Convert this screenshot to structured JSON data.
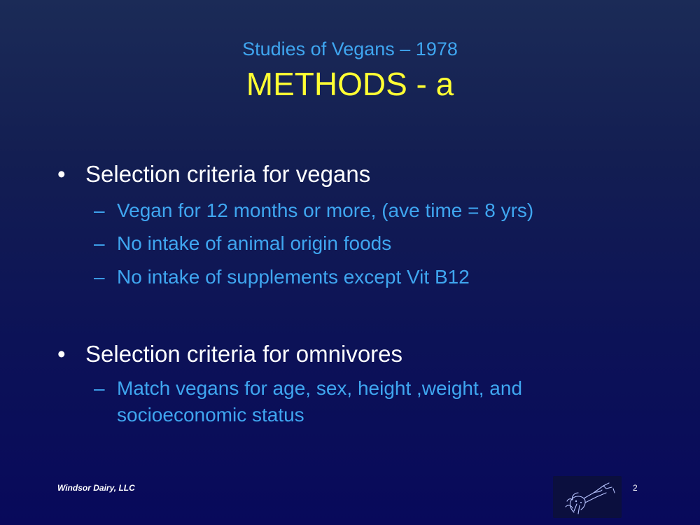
{
  "slide": {
    "subtitle": "Studies of Vegans – 1978",
    "title": "METHODS - a",
    "bullets": [
      {
        "symbol": "•",
        "text": "Selection criteria for vegans",
        "items": [
          {
            "dash": "–",
            "text": "Vegan for 12 months or more, (ave time = 8 yrs)"
          },
          {
            "dash": "–",
            "text": "No intake of animal origin foods"
          },
          {
            "dash": "–",
            "text": "No intake of supplements except Vit B12"
          }
        ]
      },
      {
        "symbol": "•",
        "text": "Selection criteria for omnivores",
        "items": [
          {
            "dash": "–",
            "text": "Match vegans for age, sex, height ,weight, and socioeconomic status"
          }
        ]
      }
    ],
    "footer": {
      "company": "Windsor Dairy, LLC",
      "page_number": "2",
      "logo_icon": "cow-sketch-icon"
    }
  }
}
